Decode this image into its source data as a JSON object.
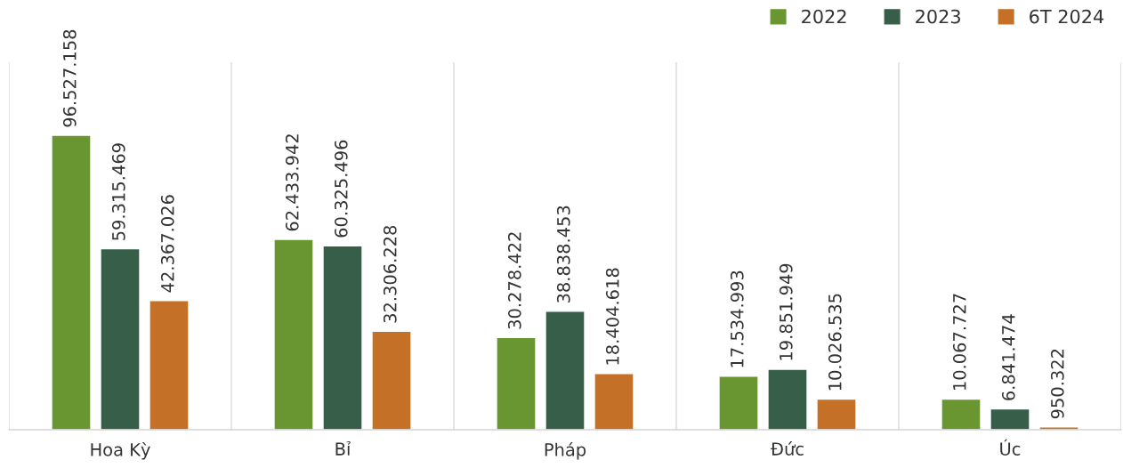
{
  "chart_data": {
    "type": "bar",
    "categories": [
      "Hoa Kỳ",
      "Bỉ",
      "Pháp",
      "Đức",
      "Úc"
    ],
    "series": [
      {
        "name": "2022",
        "color": "#6a9631",
        "values": [
          96527158,
          62433942,
          30278422,
          17534993,
          10067727
        ],
        "value_labels": [
          "96.527.158",
          "62.433.942",
          "30.278.422",
          "17.534.993",
          "10.067.727"
        ]
      },
      {
        "name": "2023",
        "color": "#365e48",
        "values": [
          59315469,
          60325496,
          38838453,
          19851949,
          6841474
        ],
        "value_labels": [
          "59.315.469",
          "60.325.496",
          "38.838.453",
          "19.851.949",
          "6.841.474"
        ]
      },
      {
        "name": "6T 2024",
        "color": "#c47026",
        "values": [
          42367026,
          32306228,
          18404618,
          10026535,
          950322
        ],
        "value_labels": [
          "42.367.026",
          "32.306.228",
          "18.404.618",
          "10.026.535",
          "950.322"
        ]
      }
    ],
    "legend": "top right",
    "grid": "x",
    "tick_labels": "x"
  }
}
